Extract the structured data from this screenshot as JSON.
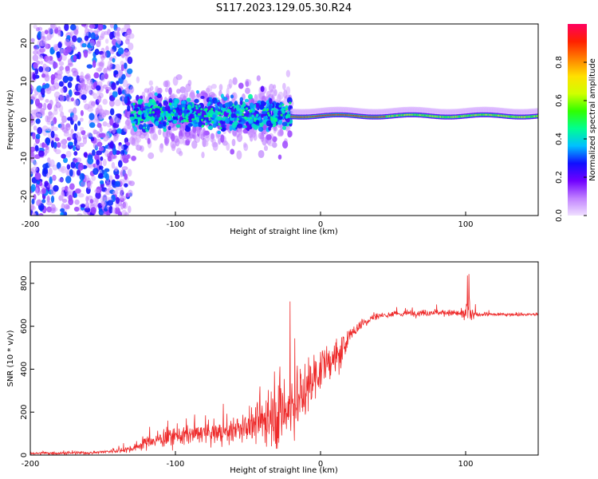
{
  "figure": {
    "title": "S117.2023.129.05.30.R24"
  },
  "chart_data": [
    {
      "type": "heatmap",
      "xlabel": "Height of straight line (km)",
      "ylabel": "Frequency (Hz)",
      "xlim": [
        -200,
        150
      ],
      "ylim": [
        -25,
        25
      ],
      "x_ticks": [
        -200,
        -100,
        0,
        100
      ],
      "y_ticks": [
        -20,
        -10,
        0,
        10,
        20
      ],
      "colorbar": {
        "label": "Normalized spectral amplitude",
        "range": [
          0,
          1
        ],
        "ticks": [
          0,
          0.2,
          0.4,
          0.6,
          0.8
        ],
        "tick_labels": [
          "0.0",
          "0.2",
          "0.4",
          "0.6",
          "0.8"
        ],
        "colormap": [
          "#f0e0ff",
          "#c080ff",
          "#7000ff",
          "#1010ff",
          "#00c0ff",
          "#00ff90",
          "#30ff00",
          "#d0ff00",
          "#ffe000",
          "#ff8000",
          "#ff2000",
          "#ff0060"
        ]
      },
      "regions": [
        {
          "x_range": [
            -200,
            -130
          ],
          "freq_spread_hz": 25,
          "typical_amplitude": 0.15
        },
        {
          "x_range": [
            -130,
            -20
          ],
          "freq_spread_hz": 6,
          "typical_amplitude": 0.35
        },
        {
          "x_range": [
            -20,
            150
          ],
          "center_freq_hz": 1,
          "freq_spread_hz": 1.5,
          "typical_amplitude": 0.75
        }
      ],
      "grid": false
    },
    {
      "type": "line",
      "xlabel": "Height of straight line (km)",
      "ylabel": "SNR (10 * v/v)",
      "xlim": [
        -200,
        150
      ],
      "ylim": [
        0,
        900
      ],
      "x_ticks": [
        -200,
        -100,
        0,
        100
      ],
      "y_ticks": [
        0,
        200,
        400,
        600,
        800
      ],
      "grid": false,
      "series": [
        {
          "color": "#ee2a2a",
          "envelope": {
            "x": [
              -200,
              -160,
              -140,
              -130,
              -120,
              -100,
              -80,
              -60,
              -50,
              -40,
              -35,
              -30,
              -25,
              -20,
              -15,
              -10,
              -5,
              0,
              5,
              10,
              15,
              20,
              30,
              40,
              60,
              80,
              95,
              100,
              102,
              104,
              110,
              130,
              150
            ],
            "mean": [
              8,
              10,
              20,
              30,
              60,
              90,
              100,
              110,
              130,
              160,
              200,
              220,
              200,
              230,
              260,
              300,
              360,
              400,
              430,
              450,
              480,
              560,
              620,
              650,
              660,
              665,
              660,
              650,
              650,
              650,
              655,
              655,
              655
            ],
            "amp": [
              8,
              8,
              12,
              25,
              40,
              60,
              60,
              70,
              90,
              140,
              200,
              260,
              280,
              260,
              200,
              180,
              160,
              120,
              100,
              110,
              100,
              50,
              30,
              20,
              20,
              20,
              25,
              30,
              250,
              40,
              10,
              10,
              10
            ]
          }
        }
      ]
    }
  ]
}
